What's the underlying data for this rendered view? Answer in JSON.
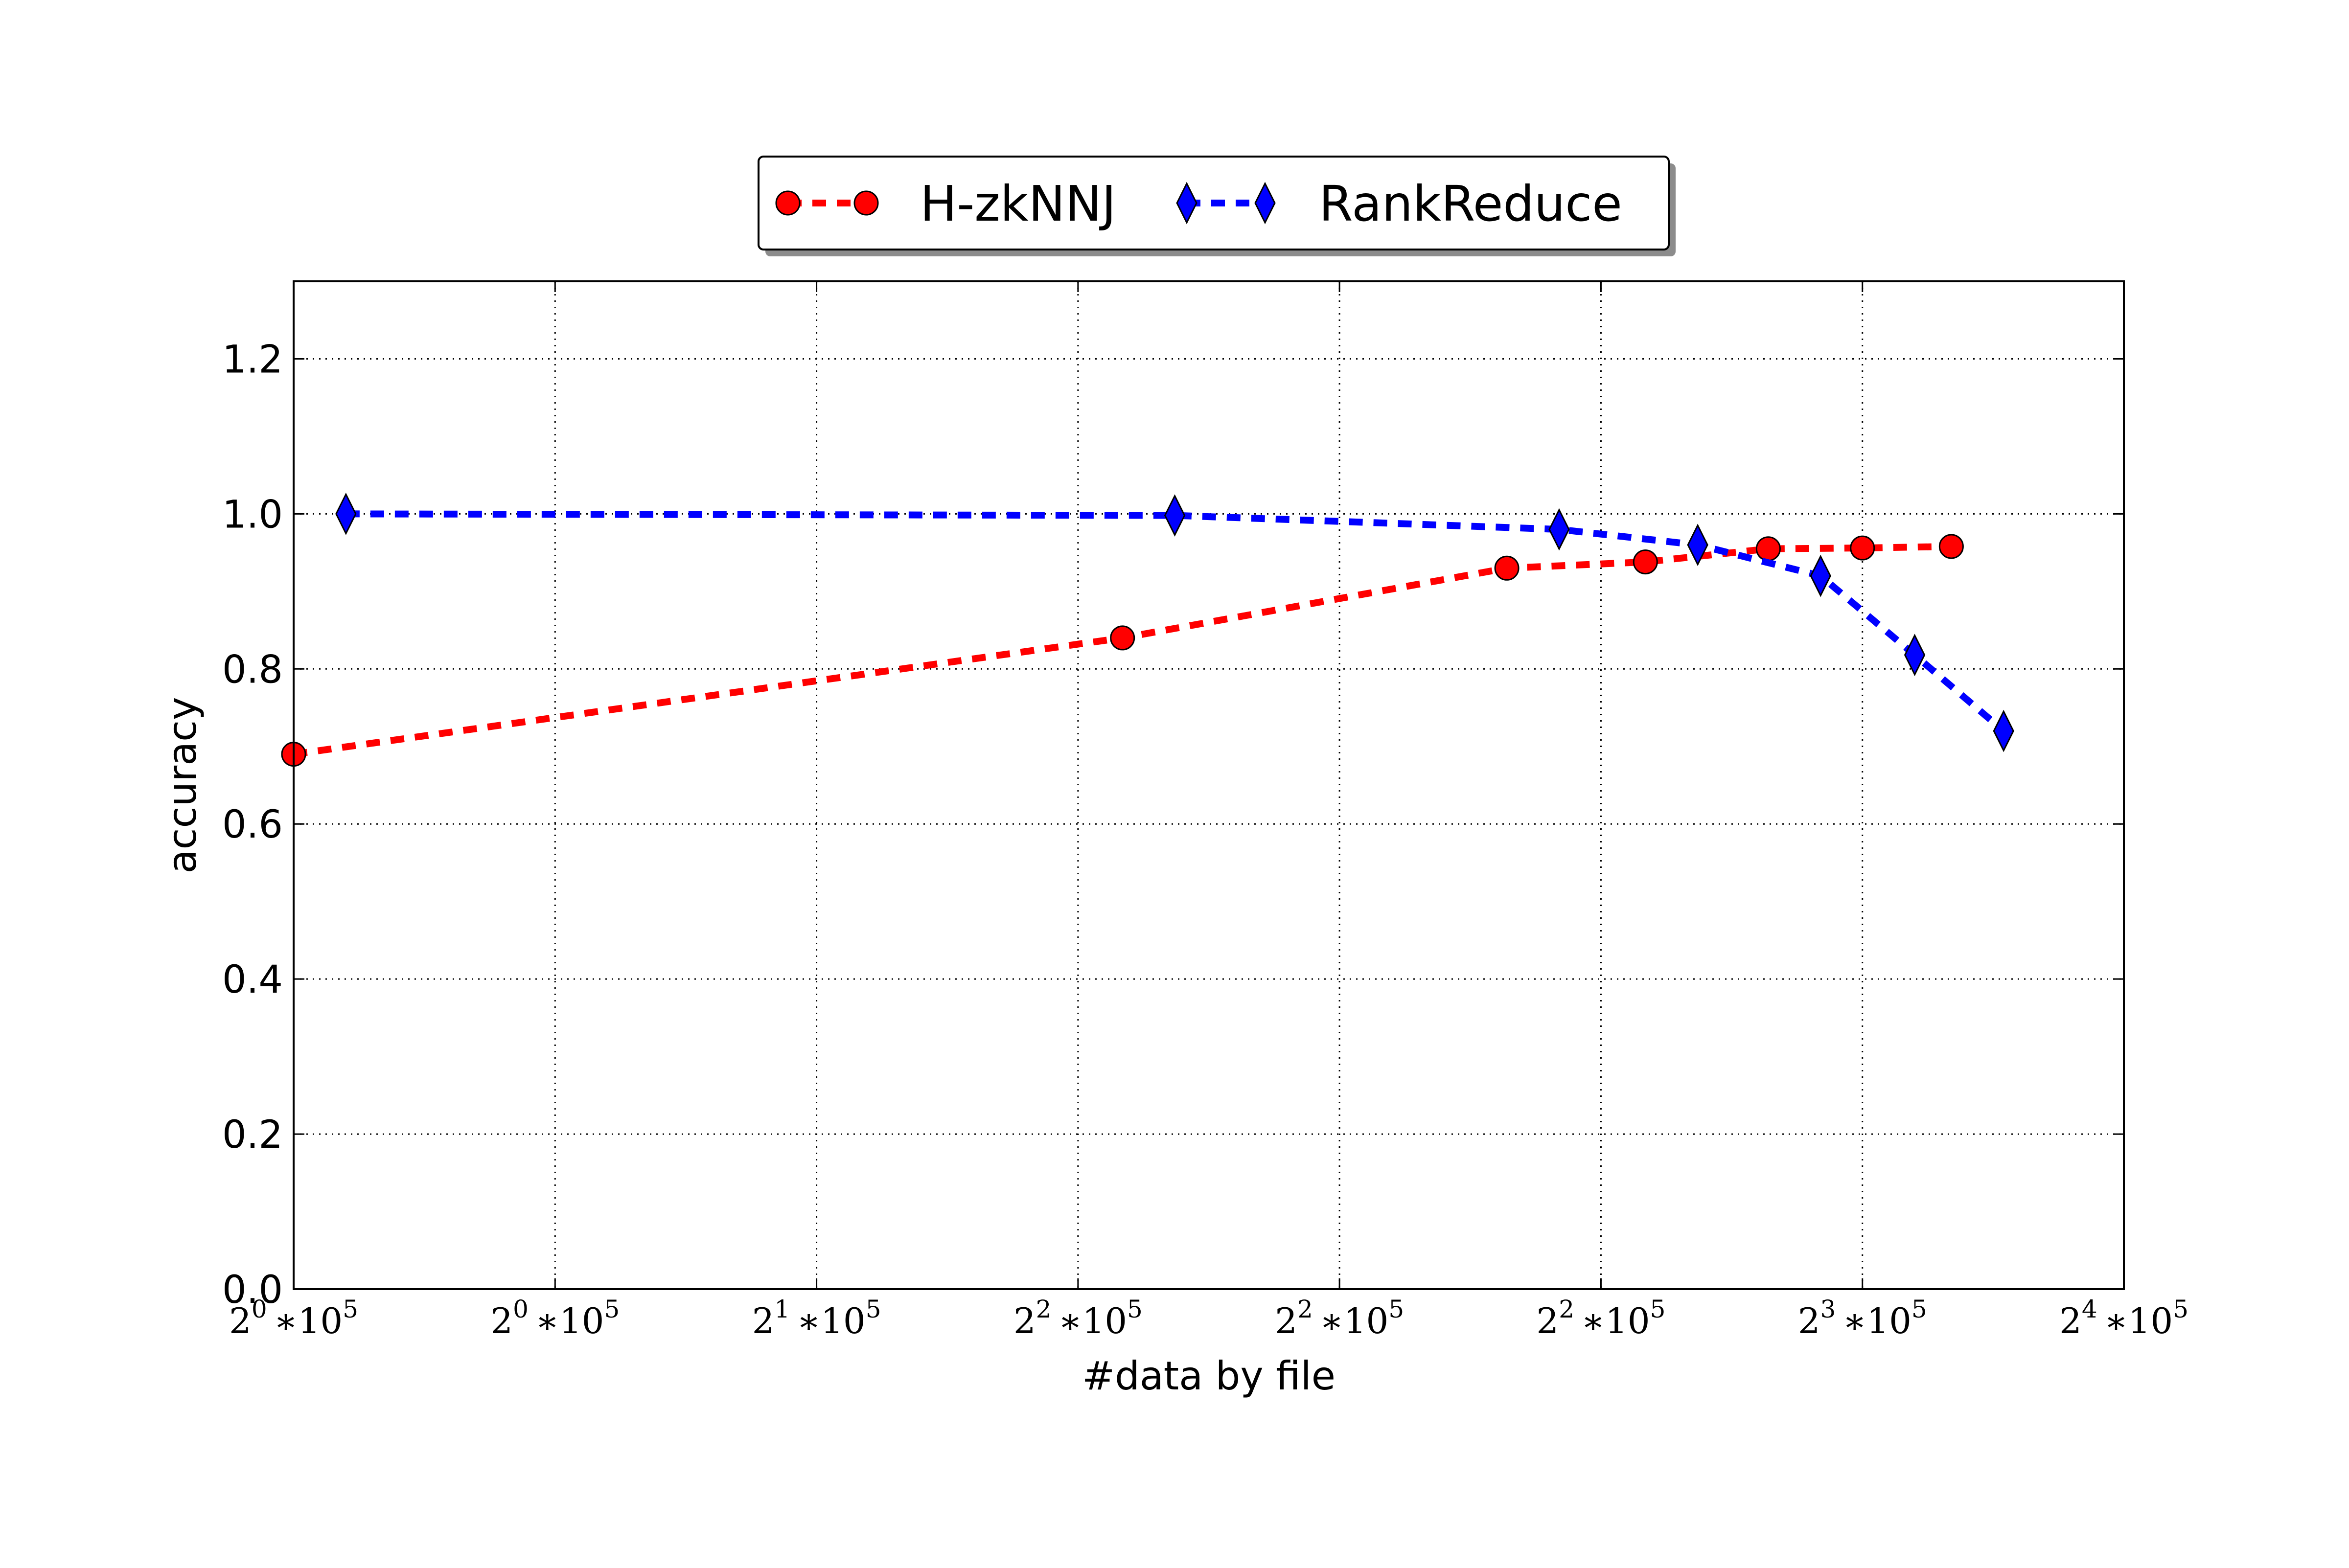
{
  "chart_data": {
    "type": "line",
    "xlabel": "#data by file",
    "ylabel": "accuracy",
    "ylim": [
      0.0,
      1.3
    ],
    "yticks": [
      "0.0",
      "0.2",
      "0.4",
      "0.6",
      "0.8",
      "1.0",
      "1.2"
    ],
    "xticks": [
      {
        "base": "2",
        "exp": "0",
        "mult": "∗10",
        "mexp": "5"
      },
      {
        "base": "2",
        "exp": "0",
        "mult": "∗10",
        "mexp": "5"
      },
      {
        "base": "2",
        "exp": "1",
        "mult": "∗10",
        "mexp": "5"
      },
      {
        "base": "2",
        "exp": "2",
        "mult": "∗10",
        "mexp": "5"
      },
      {
        "base": "2",
        "exp": "2",
        "mult": "∗10",
        "mexp": "5"
      },
      {
        "base": "2",
        "exp": "2",
        "mult": "∗10",
        "mexp": "5"
      },
      {
        "base": "2",
        "exp": "3",
        "mult": "∗10",
        "mexp": "5"
      },
      {
        "base": "2",
        "exp": "4",
        "mult": "∗10",
        "mexp": "5"
      }
    ],
    "xlim": [
      0,
      7
    ],
    "grid": true,
    "legend_position": "top-center",
    "series": [
      {
        "name": "H-zkNNJ",
        "color": "#ff0000",
        "marker": "circle",
        "x": [
          0.0,
          3.17,
          4.64,
          5.17,
          5.64,
          6.0,
          6.34
        ],
        "y": [
          0.69,
          0.84,
          0.93,
          0.938,
          0.955,
          0.956,
          0.958
        ]
      },
      {
        "name": "RankReduce",
        "color": "#0000ff",
        "marker": "diamond",
        "x": [
          0.2,
          3.37,
          4.84,
          5.37,
          5.84,
          6.2,
          6.54
        ],
        "y": [
          1.0,
          0.998,
          0.98,
          0.96,
          0.92,
          0.818,
          0.72
        ]
      }
    ]
  }
}
